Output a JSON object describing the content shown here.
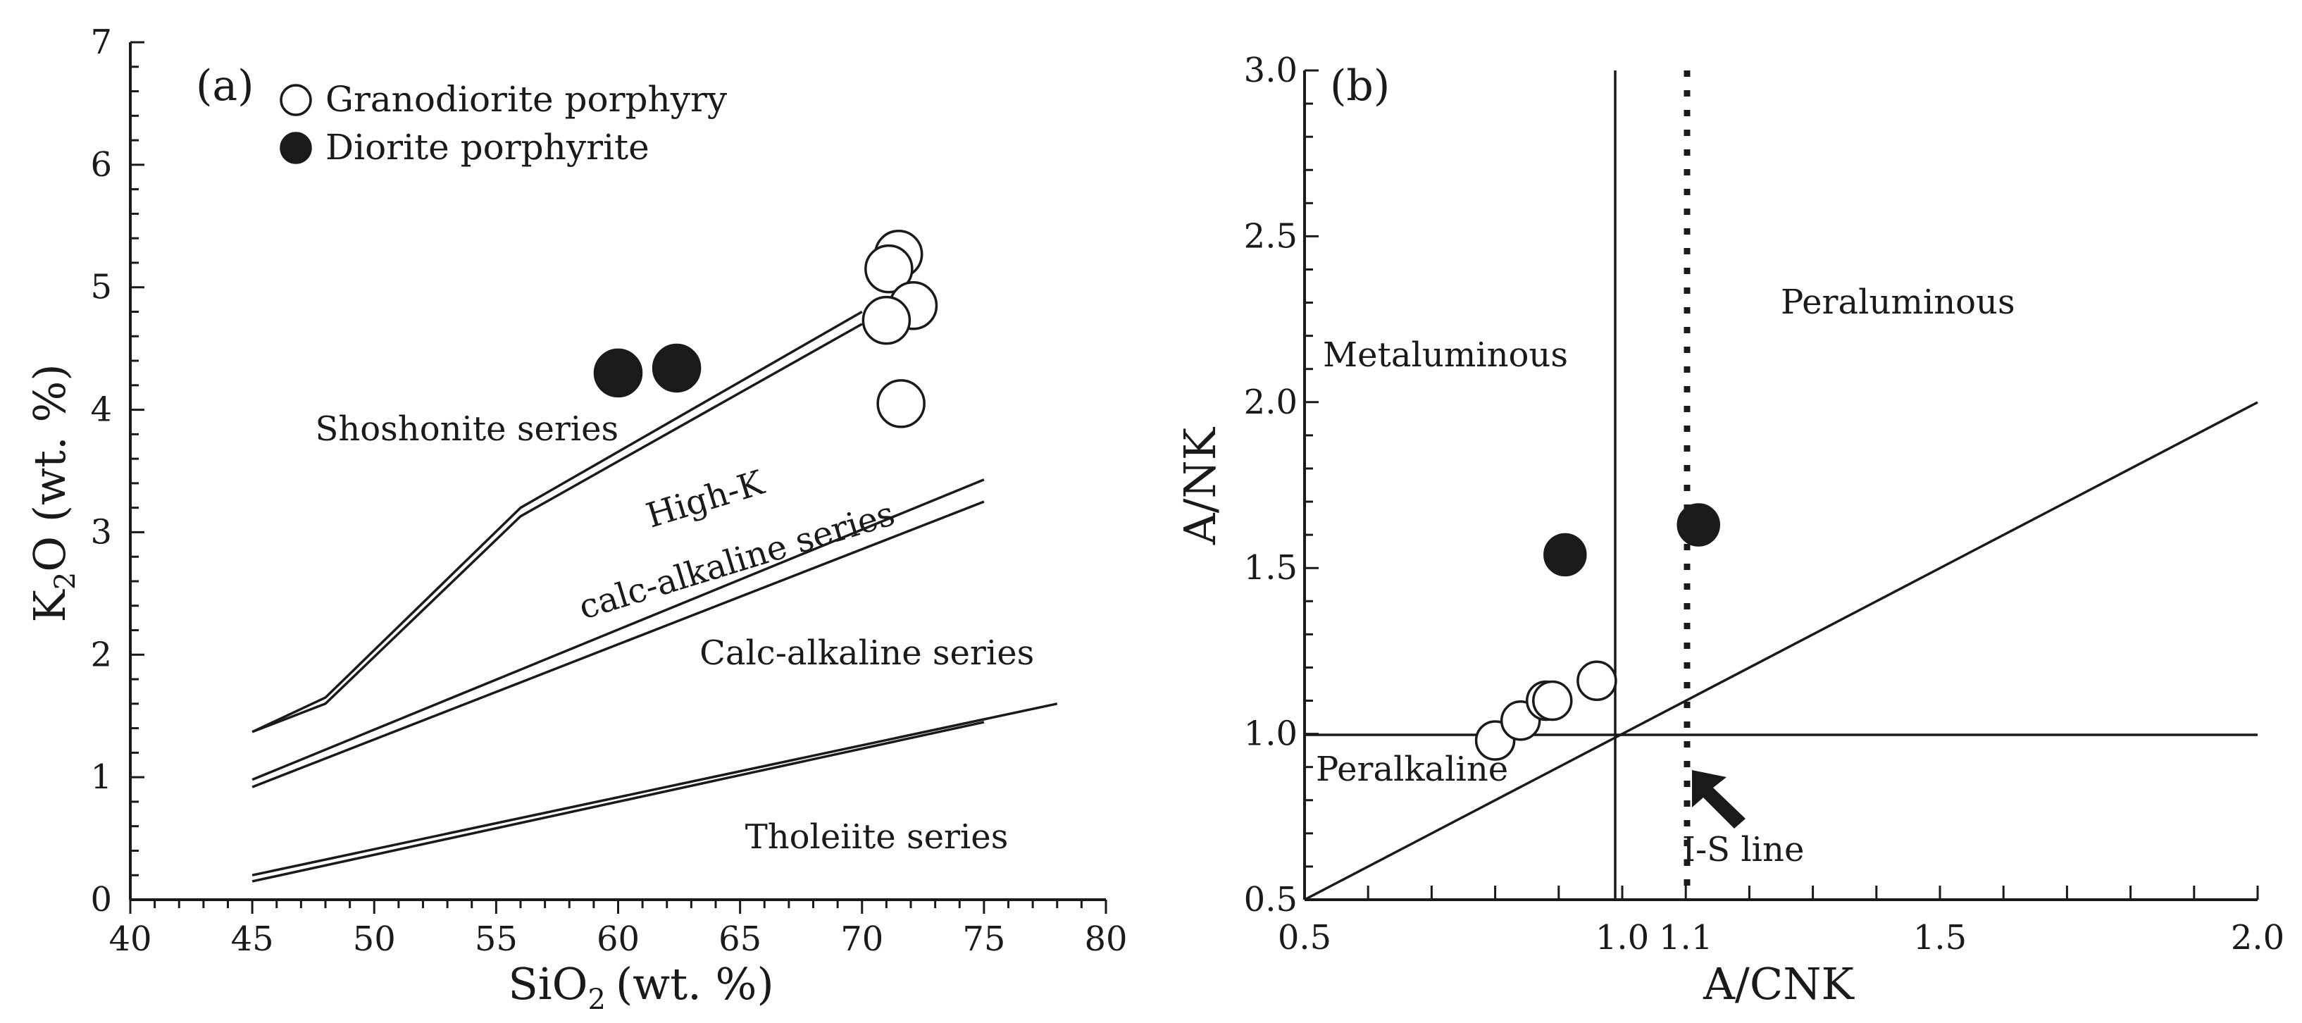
{
  "chart_data": [
    {
      "panel": "(a)",
      "type": "scatter",
      "xlabel": "SiO",
      "xlabel_sub": "2",
      "xlabel_unit": "(wt. %)",
      "ylabel": "K",
      "ylabel_sub": "2",
      "ylabel_rest": "O (wt. %)",
      "xlim": [
        40,
        80
      ],
      "ylim": [
        0,
        7
      ],
      "x_major_ticks": [
        40,
        45,
        50,
        55,
        60,
        65,
        70,
        75,
        80
      ],
      "y_major_ticks": [
        0,
        1,
        2,
        3,
        4,
        5,
        6,
        7
      ],
      "legend": [
        {
          "marker": "open-circle",
          "label": "Granodiorite porphyry"
        },
        {
          "marker": "filled-circle",
          "label": "Diorite porphyrite"
        }
      ],
      "series": [
        {
          "name": "Granodiorite porphyry",
          "marker": "open",
          "points": [
            [
              71.5,
              5.27
            ],
            [
              71.1,
              5.15
            ],
            [
              72.1,
              4.85
            ],
            [
              71.0,
              4.73
            ],
            [
              71.6,
              4.05
            ]
          ]
        },
        {
          "name": "Diorite porphyrite",
          "marker": "filled",
          "points": [
            [
              60.0,
              4.3
            ],
            [
              62.4,
              4.34
            ]
          ]
        }
      ],
      "boundaries": [
        {
          "name": "Shoshonite / High-K boundary (upper)",
          "points": [
            [
              45,
              1.37
            ],
            [
              48,
              1.65
            ],
            [
              56,
              3.2
            ],
            [
              70,
              4.8
            ]
          ]
        },
        {
          "name": "Shoshonite / High-K boundary (lower)",
          "points": [
            [
              45,
              1.37
            ],
            [
              48,
              1.6
            ],
            [
              56,
              3.13
            ],
            [
              70,
              4.7
            ]
          ]
        },
        {
          "name": "High-K / Calc-alkaline boundary (upper)",
          "points": [
            [
              45,
              0.98
            ],
            [
              75,
              3.43
            ]
          ]
        },
        {
          "name": "High-K / Calc-alkaline boundary (lower)",
          "points": [
            [
              45,
              0.92
            ],
            [
              75,
              3.25
            ]
          ]
        },
        {
          "name": "Calc-alkaline / Tholeiite boundary (upper)",
          "points": [
            [
              45,
              0.2
            ],
            [
              78,
              1.6
            ]
          ]
        },
        {
          "name": "Calc-alkaline / Tholeiite boundary (lower)",
          "points": [
            [
              45,
              0.15
            ],
            [
              75,
              1.45
            ]
          ]
        }
      ],
      "region_labels": [
        {
          "text": "Shoshonite series",
          "x": 53.8,
          "y": 3.75,
          "rotate": 0
        },
        {
          "text": "High-K",
          "x": 63.7,
          "y": 3.18,
          "rotate": -17
        },
        {
          "text": "calc-alkaline series",
          "x": 65.0,
          "y": 2.68,
          "rotate": -17
        },
        {
          "text": "Calc-alkaline series",
          "x": 70.2,
          "y": 1.92,
          "rotate": 0
        },
        {
          "text": "Tholeiite series",
          "x": 70.6,
          "y": 0.42,
          "rotate": 0
        }
      ]
    },
    {
      "panel": "(b)",
      "type": "scatter",
      "xlabel": "A/CNK",
      "ylabel": "A/NK",
      "xlim": [
        0.5,
        2.0
      ],
      "ylim": [
        0.5,
        3.0
      ],
      "x_tick_labels": [
        "0.5",
        "1.0",
        "1.1",
        "1.5",
        "2.0"
      ],
      "y_tick_labels": [
        "0.5",
        "1.0",
        "1.5",
        "2.0",
        "2.5",
        "3.0"
      ],
      "series": [
        {
          "name": "Granodiorite porphyry",
          "marker": "open",
          "points": [
            [
              0.8,
              0.98
            ],
            [
              0.84,
              1.04
            ],
            [
              0.88,
              1.1
            ],
            [
              0.89,
              1.1
            ],
            [
              0.96,
              1.16
            ]
          ]
        },
        {
          "name": "Diorite porphyrite",
          "marker": "filled",
          "points": [
            [
              0.91,
              1.54
            ],
            [
              1.12,
              1.63
            ]
          ]
        }
      ],
      "region_labels": [
        "Metaluminous",
        "Peraluminous",
        "Peralkaline"
      ],
      "annotation": "I-S line"
    }
  ]
}
